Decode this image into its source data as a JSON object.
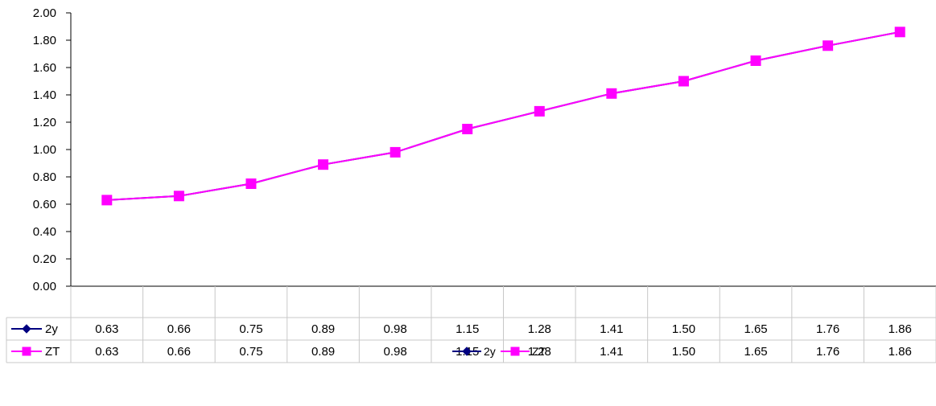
{
  "chart_data": {
    "type": "line",
    "categories": [
      "",
      "",
      "",
      "",
      "",
      "",
      "",
      "",
      "",
      "",
      "",
      ""
    ],
    "series": [
      {
        "name": "2y",
        "values": [
          0.63,
          0.66,
          0.75,
          0.89,
          0.98,
          1.15,
          1.28,
          1.41,
          1.5,
          1.65,
          1.76,
          1.86
        ],
        "color": "#000080",
        "marker": "diamond"
      },
      {
        "name": "ZT",
        "values": [
          0.63,
          0.66,
          0.75,
          0.89,
          0.98,
          1.15,
          1.28,
          1.41,
          1.5,
          1.65,
          1.76,
          1.86
        ],
        "color": "#FF00FF",
        "marker": "square"
      }
    ],
    "title": "",
    "xlabel": "",
    "ylabel": "",
    "ylim": [
      0,
      2
    ],
    "yticks": [
      "0.00",
      "0.20",
      "0.40",
      "0.60",
      "0.80",
      "1.00",
      "1.20",
      "1.40",
      "1.60",
      "1.80",
      "2.00"
    ],
    "data_table": true,
    "legend_position": "bottom",
    "grid": false
  }
}
